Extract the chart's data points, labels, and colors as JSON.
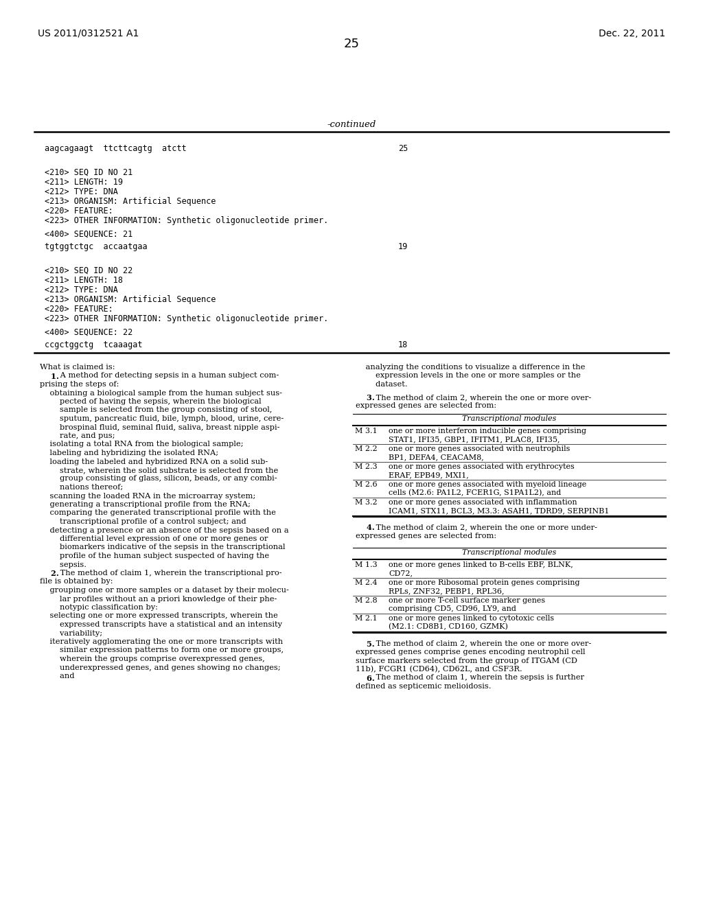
{
  "header_left": "US 2011/0312521 A1",
  "header_right": "Dec. 22, 2011",
  "page_number": "25",
  "continued_label": "-continued",
  "bg_color": "#ffffff",
  "seq_block1": {
    "sequence_line": "aagcagaagt  ttcttcagtg  atctt",
    "sequence_number": "25",
    "id_lines": [
      "<210> SEQ ID NO 21",
      "<211> LENGTH: 19",
      "<212> TYPE: DNA",
      "<213> ORGANISM: Artificial Sequence",
      "<220> FEATURE:",
      "<223> OTHER INFORMATION: Synthetic oligonucleotide primer."
    ],
    "seq400_line": "<400> SEQUENCE: 21",
    "seq_data_line": "tgtggtctgc  accaatgaa",
    "seq_data_number": "19"
  },
  "seq_block2": {
    "id_lines": [
      "<210> SEQ ID NO 22",
      "<211> LENGTH: 18",
      "<212> TYPE: DNA",
      "<213> ORGANISM: Artificial Sequence",
      "<220> FEATURE:",
      "<223> OTHER INFORMATION: Synthetic oligonucleotide primer."
    ],
    "seq400_line": "<400> SEQUENCE: 22",
    "seq_data_line": "ccgctggctg  tcaaagat",
    "seq_data_number": "18"
  },
  "left_col": {
    "lines": [
      [
        "normal",
        "What is claimed is:"
      ],
      [
        "bold_start",
        "    1.",
        " A method for detecting sepsis in a human subject com-"
      ],
      [
        "normal",
        "prising the steps of:"
      ],
      [
        "normal",
        "    obtaining a biological sample from the human subject sus-"
      ],
      [
        "normal",
        "        pected of having the sepsis, wherein the biological"
      ],
      [
        "normal",
        "        sample is selected from the group consisting of stool,"
      ],
      [
        "normal",
        "        sputum, pancreatic fluid, bile, lymph, blood, urine, cere-"
      ],
      [
        "normal",
        "        brospinal fluid, seminal fluid, saliva, breast nipple aspi-"
      ],
      [
        "normal",
        "        rate, and pus;"
      ],
      [
        "normal",
        "    isolating a total RNA from the biological sample;"
      ],
      [
        "normal",
        "    labeling and hybridizing the isolated RNA;"
      ],
      [
        "normal",
        "    loading the labeled and hybridized RNA on a solid sub-"
      ],
      [
        "normal",
        "        strate, wherein the solid substrate is selected from the"
      ],
      [
        "normal",
        "        group consisting of glass, silicon, beads, or any combi-"
      ],
      [
        "normal",
        "        nations thereof;"
      ],
      [
        "normal",
        "    scanning the loaded RNA in the microarray system;"
      ],
      [
        "normal",
        "    generating a transcriptional profile from the RNA;"
      ],
      [
        "normal",
        "    comparing the generated transcriptional profile with the"
      ],
      [
        "normal",
        "        transcriptional profile of a control subject; and"
      ],
      [
        "normal",
        "    detecting a presence or an absence of the sepsis based on a"
      ],
      [
        "normal",
        "        differential level expression of one or more genes or"
      ],
      [
        "normal",
        "        biomarkers indicative of the sepsis in the transcriptional"
      ],
      [
        "normal",
        "        profile of the human subject suspected of having the"
      ],
      [
        "normal",
        "        sepsis."
      ],
      [
        "bold_start",
        "    2.",
        " The method of claim 1, wherein the transcriptional pro-"
      ],
      [
        "normal",
        "file is obtained by:"
      ],
      [
        "normal",
        "    grouping one or more samples or a dataset by their molecu-"
      ],
      [
        "normal",
        "        lar profiles without an a priori knowledge of their phe-"
      ],
      [
        "normal",
        "        notypic classification by:"
      ],
      [
        "normal",
        "    selecting one or more expressed transcripts, wherein the"
      ],
      [
        "normal",
        "        expressed transcripts have a statistical and an intensity"
      ],
      [
        "normal",
        "        variability;"
      ],
      [
        "normal",
        "    iteratively agglomerating the one or more transcripts with"
      ],
      [
        "normal",
        "        similar expression patterns to form one or more groups,"
      ],
      [
        "normal",
        "        wherein the groups comprise overexpressed genes,"
      ],
      [
        "normal",
        "        underexpressed genes, and genes showing no changes;"
      ],
      [
        "normal",
        "        and"
      ]
    ]
  },
  "right_col": {
    "lines_before_table1": [
      [
        "normal",
        "    analyzing the conditions to visualize a difference in the"
      ],
      [
        "normal",
        "        expression levels in the one or more samples or the"
      ],
      [
        "normal",
        "        dataset."
      ],
      [
        "gap",
        ""
      ],
      [
        "bold_start",
        "    3.",
        " The method of claim 2, wherein the one or more over-"
      ],
      [
        "normal",
        "expressed genes are selected from:"
      ]
    ],
    "table1_title": "Transcriptional modules",
    "table1_rows": [
      [
        "M 3.1",
        "one or more interferon inducible genes comprising",
        "STAT1, IFI35, GBP1, IFITM1, PLAC8, IFI35,"
      ],
      [
        "M 2.2",
        "one or more genes associated with neutrophils",
        "BP1, DEFA4, CEACAM8,"
      ],
      [
        "M 2.3",
        "one or more genes associated with erythrocytes",
        "ERAF, EPB49, MXI1,"
      ],
      [
        "M 2.6",
        "one or more genes associated with myeloid lineage",
        "cells (M2.6: PA1L2, FCER1G, S1PA1L2), and"
      ],
      [
        "M 3.2",
        "one or more genes associated with inflammation",
        "ICAM1, STX11, BCL3, M3.3: ASAH1, TDRD9, SERPINB1"
      ]
    ],
    "lines_before_table2": [
      [
        "gap",
        ""
      ],
      [
        "bold_start",
        "    4.",
        " The method of claim 2, wherein the one or more under-"
      ],
      [
        "normal",
        "expressed genes are selected from:"
      ],
      [
        "gap",
        ""
      ]
    ],
    "table2_title": "Transcriptional modules",
    "table2_rows": [
      [
        "M 1.3",
        "one or more genes linked to B-cells EBF, BLNK,",
        "CD72,"
      ],
      [
        "M 2.4",
        "one or more Ribosomal protein genes comprising",
        "RPLs, ZNF32, PEBP1, RPL36,"
      ],
      [
        "M 2.8",
        "one or more T-cell surface marker genes",
        "comprising CD5, CD96, LY9, and"
      ],
      [
        "M 2.1",
        "one or more genes linked to cytotoxic cells",
        "(M2.1: CD8B1, CD160, GZMK)"
      ]
    ],
    "lines_after_table2": [
      [
        "gap",
        ""
      ],
      [
        "bold_start",
        "    5.",
        " The method of claim 2, wherein the one or more over-"
      ],
      [
        "normal",
        "expressed genes comprise genes encoding neutrophil cell"
      ],
      [
        "normal",
        "surface markers selected from the group of ITGAM (CD"
      ],
      [
        "normal",
        "11b), FCGR1 (CD64), CD62L, and CSF3R."
      ],
      [
        "bold_start",
        "    6.",
        " The method of claim 1, wherein the sepsis is further"
      ],
      [
        "normal",
        "defined as septicemic melioidosis."
      ]
    ]
  }
}
